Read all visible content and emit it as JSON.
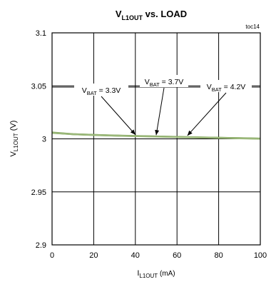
{
  "chart_data": {
    "type": "line",
    "title_main": "V",
    "title_sub": "L1OUT",
    "title_rest": " vs. LOAD",
    "figure_id": "toc14",
    "ylabel_main": "V",
    "ylabel_sub": "L1OUT",
    "ylabel_rest": " (V)",
    "xlabel_main": "I",
    "xlabel_sub": "L1OUT",
    "xlabel_rest": " (mA)",
    "xlim": [
      0,
      100
    ],
    "ylim": [
      2.9,
      3.1
    ],
    "xticks": [
      "0",
      "20",
      "40",
      "60",
      "80",
      "100"
    ],
    "yticks": [
      "3.1",
      "3.05",
      "3",
      "2.95",
      "2.9"
    ],
    "grid": true,
    "series": [
      {
        "name": "VBAT = 3.3V",
        "color": "#86a85f",
        "x": [
          0,
          10,
          20,
          30,
          40,
          50,
          60,
          70,
          80,
          90,
          100
        ],
        "y": [
          3.006,
          3.0045,
          3.0038,
          3.0032,
          3.0027,
          3.0023,
          3.0019,
          3.0015,
          3.0011,
          3.0007,
          3.0003
        ]
      },
      {
        "name": "VBAT = 3.7V",
        "color": "#6f9a45",
        "x": [
          0,
          10,
          20,
          30,
          40,
          50,
          60,
          70,
          80,
          90,
          100
        ],
        "y": [
          3.0058,
          3.0044,
          3.0037,
          3.0031,
          3.0026,
          3.0022,
          3.0018,
          3.0014,
          3.001,
          3.0006,
          3.0002
        ]
      },
      {
        "name": "VBAT = 4.2V",
        "color": "#9bb87a",
        "x": [
          0,
          10,
          20,
          30,
          40,
          50,
          60,
          70,
          80,
          90,
          100
        ],
        "y": [
          3.0056,
          3.0043,
          3.0036,
          3.003,
          3.0025,
          3.0021,
          3.0017,
          3.0013,
          3.0009,
          3.0005,
          3.0001
        ]
      }
    ],
    "annotations": [
      {
        "main": "V",
        "sub": "BAT",
        "rest": " = 3.3V",
        "target": [
          40,
          3.0026
        ]
      },
      {
        "main": "V",
        "sub": "BAT",
        "rest": " = 3.7V",
        "target": [
          50,
          3.0022
        ]
      },
      {
        "main": "V",
        "sub": "BAT",
        "rest": " = 4.2V",
        "target": [
          65,
          3.0017
        ]
      }
    ]
  }
}
